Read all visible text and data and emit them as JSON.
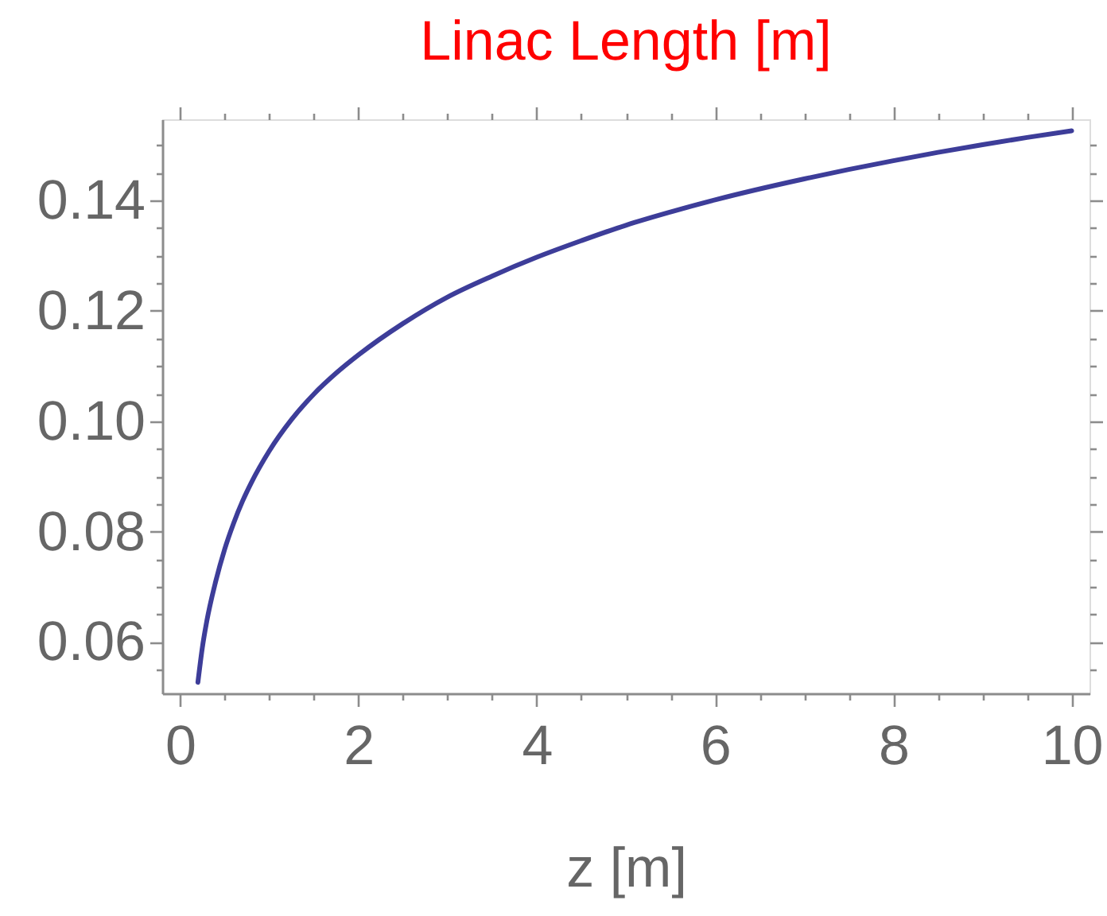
{
  "chart_data": {
    "type": "line",
    "title": "Linac Length [m]",
    "xlabel": "z [m]",
    "x": [
      0.2,
      0.25,
      0.3,
      0.4,
      0.5,
      0.6,
      0.7,
      0.8,
      1,
      1.25,
      1.5,
      1.75,
      2,
      2.5,
      3,
      3.5,
      4,
      4.5,
      5,
      5.5,
      6,
      7,
      7.5,
      8,
      8.5,
      9,
      9.5,
      10
    ],
    "series": [
      {
        "color": "#3d3d99",
        "values": [
          0.0527,
          0.059,
          0.0638,
          0.071,
          0.0768,
          0.0815,
          0.0855,
          0.0889,
          0.0946,
          0.1003,
          0.1049,
          0.1087,
          0.112,
          0.1177,
          0.1225,
          0.1263,
          0.1297,
          0.1327,
          0.1355,
          0.1379,
          0.1401,
          0.1439,
          0.1456,
          0.1472,
          0.1487,
          0.1501,
          0.1514,
          0.1526
        ]
      }
    ],
    "xlim": [
      -0.2,
      10.2
    ],
    "ylim": [
      0.0507,
      0.1547
    ],
    "xticks": [
      0,
      {
        "value": 0.5,
        "label": null
      },
      {
        "value": 1,
        "label": null
      },
      {
        "value": 1.5,
        "label": null
      },
      2,
      {
        "value": 2.5,
        "label": null
      },
      {
        "value": 3,
        "label": null
      },
      {
        "value": 3.5,
        "label": null
      },
      4,
      {
        "value": 4.5,
        "label": null
      },
      {
        "value": 5,
        "label": null
      },
      {
        "value": 5.5,
        "label": null
      },
      6,
      {
        "value": 6.5,
        "label": null
      },
      {
        "value": 7,
        "label": null
      },
      {
        "value": 7.5,
        "label": null
      },
      8,
      {
        "value": 8.5,
        "label": null
      },
      {
        "value": 9,
        "label": null
      },
      {
        "value": 9.5,
        "label": null
      },
      10
    ],
    "yticks": [
      {
        "value": 0.055,
        "label": null
      },
      0.06,
      {
        "value": 0.065,
        "label": null
      },
      {
        "value": 0.07,
        "label": null
      },
      {
        "value": 0.075,
        "label": null
      },
      0.08,
      {
        "value": 0.085,
        "label": null
      },
      {
        "value": 0.09,
        "label": null
      },
      {
        "value": 0.095,
        "label": null
      },
      {
        "value": 0.1,
        "label": "0.10"
      },
      {
        "value": 0.105,
        "label": null
      },
      {
        "value": 0.11,
        "label": null
      },
      {
        "value": 0.115,
        "label": null
      },
      0.12,
      {
        "value": 0.125,
        "label": null
      },
      {
        "value": 0.13,
        "label": null
      },
      {
        "value": 0.135,
        "label": null
      },
      0.14,
      {
        "value": 0.145,
        "label": null
      },
      {
        "value": 0.15,
        "label": null
      }
    ],
    "marker": "none",
    "line_style": "solid"
  }
}
